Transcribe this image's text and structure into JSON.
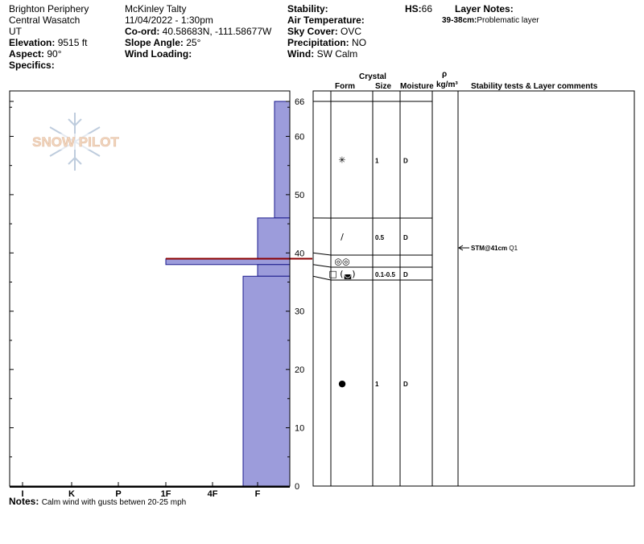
{
  "header": {
    "location_line1": "Brighton Periphery",
    "location_line2": "Central Wasatch",
    "location_line3": "UT",
    "elevation_label": "Elevation:",
    "elevation_value": "9515 ft",
    "aspect_label": "Aspect:",
    "aspect_value": "90°",
    "specifics_label": "Specifics:",
    "observer": "McKinley Talty",
    "datetime": "11/04/2022 - 1:30pm",
    "coord_label": "Co-ord:",
    "coord_value": "40.58683N, -111.58677W",
    "slope_label": "Slope Angle:",
    "slope_value": "25°",
    "wind_loading_label": "Wind Loading:",
    "stability_label": "Stability:",
    "air_temp_label": "Air Temperature:",
    "sky_label": "Sky Cover:",
    "sky_value": "OVC",
    "precip_label": "Precipitation:",
    "precip_value": "NO",
    "wind_label": "Wind:",
    "wind_value": "SW Calm",
    "hs_label": "HS:",
    "hs_value": "66",
    "layer_notes_label": "Layer Notes:",
    "layer_note_range": "39-38cm:",
    "layer_note_text": "Problematic layer"
  },
  "columns": {
    "crystal": "Crystal",
    "form": "Form",
    "size": "Size",
    "moisture": "Moisture",
    "rho": "ρ",
    "density": "kg/m³",
    "stability": "Stability tests & Layer comments"
  },
  "notes": {
    "label": "Notes:",
    "text": "Calm wind with gusts betwen 20-25 mph"
  },
  "logo": {
    "text": "SNOW PILOT"
  },
  "colors": {
    "hardness_fill": "#9c9cdb",
    "hardness_stroke": "#1a1a8c",
    "weak_layer_line": "#8b0000",
    "grid": "#000000"
  },
  "chart_data": {
    "type": "snow-profile",
    "hardness_scale": [
      "I",
      "K",
      "P",
      "1F",
      "4F",
      "F"
    ],
    "y_axis_ticks": [
      0,
      10,
      20,
      30,
      40,
      50,
      60,
      66
    ],
    "ylim": [
      0,
      66
    ],
    "hardness_layers": [
      {
        "top": 66,
        "bottom": 46,
        "hardness": "F-"
      },
      {
        "top": 46,
        "bottom": 39,
        "hardness": "F"
      },
      {
        "top": 39,
        "bottom": 38,
        "hardness": "1F"
      },
      {
        "top": 38,
        "bottom": 36,
        "hardness": "F"
      },
      {
        "top": 36,
        "bottom": 0,
        "hardness": "F+"
      }
    ],
    "weak_layer_depth": 39,
    "layers": [
      {
        "top": 66,
        "bottom": 46,
        "form_icon": "✳",
        "size": "1",
        "moisture": "D"
      },
      {
        "top": 46,
        "bottom": 40,
        "form_icon": "/",
        "size": "0.5",
        "moisture": "D"
      },
      {
        "top": 40,
        "bottom": 38,
        "form_icon": "◎◎",
        "size": "",
        "moisture": ""
      },
      {
        "top": 38,
        "bottom": 36,
        "form_icon": "□ (◛)",
        "size": "0.1-0.5",
        "moisture": "D"
      },
      {
        "top": 36,
        "bottom": 0,
        "form_icon": "●",
        "size": "1",
        "moisture": "D"
      }
    ],
    "stability_tests": [
      {
        "depth": 41,
        "label": "STM@41cm",
        "result": "Q1"
      }
    ]
  }
}
